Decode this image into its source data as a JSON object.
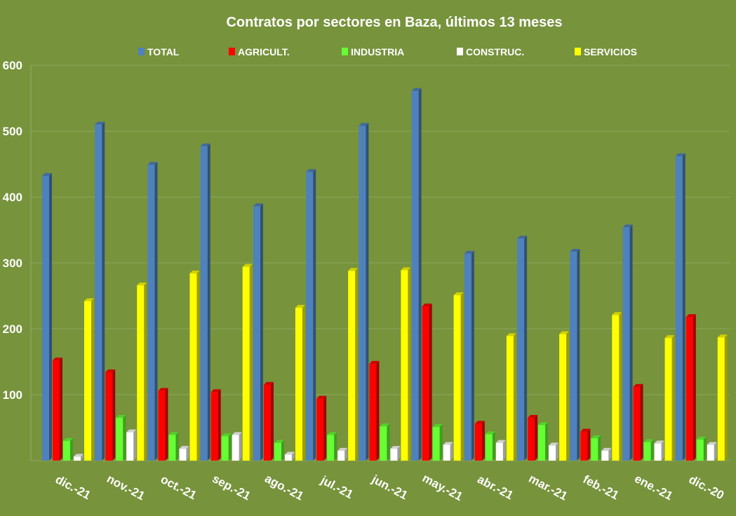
{
  "chart_data": {
    "type": "bar",
    "title": "Contratos por sectores en Baza, últimos 13 meses",
    "xlabel": "",
    "ylabel": "",
    "ylim": [
      0,
      600
    ],
    "yticks": [
      "600",
      "500",
      "400",
      "300",
      "200",
      "100"
    ],
    "grid": true,
    "legend_position": "top",
    "categories": [
      "dic.-21",
      "nov.-21",
      "oct.-21",
      "sep.-21",
      "ago.-21",
      "jul.-21",
      "jun.-21",
      "may.-21",
      "abr.-21",
      "mar.-21",
      "feb.-21",
      "ene.-21",
      "dic.-20"
    ],
    "series": [
      {
        "name": "TOTAL",
        "color": "#4f81bd",
        "values": [
          432,
          510,
          449,
          477,
          386,
          438,
          508,
          561,
          314,
          337,
          317,
          354,
          462
        ]
      },
      {
        "name": "AGRICULT.",
        "color": "#ff0000",
        "values": [
          152,
          134,
          106,
          104,
          115,
          94,
          147,
          234,
          56,
          65,
          44,
          112,
          218
        ]
      },
      {
        "name": "INDUSTRIA",
        "color": "#66ff33",
        "values": [
          30,
          65,
          39,
          37,
          27,
          39,
          52,
          51,
          40,
          54,
          34,
          28,
          32
        ]
      },
      {
        "name": "CONSTRUC.",
        "color": "#ffffff",
        "values": [
          6,
          43,
          18,
          39,
          9,
          15,
          18,
          24,
          27,
          23,
          15,
          26,
          24
        ]
      },
      {
        "name": "SERVICIOS",
        "color": "#ffff00",
        "values": [
          242,
          266,
          284,
          294,
          232,
          288,
          289,
          251,
          189,
          192,
          221,
          186,
          187
        ]
      }
    ]
  }
}
